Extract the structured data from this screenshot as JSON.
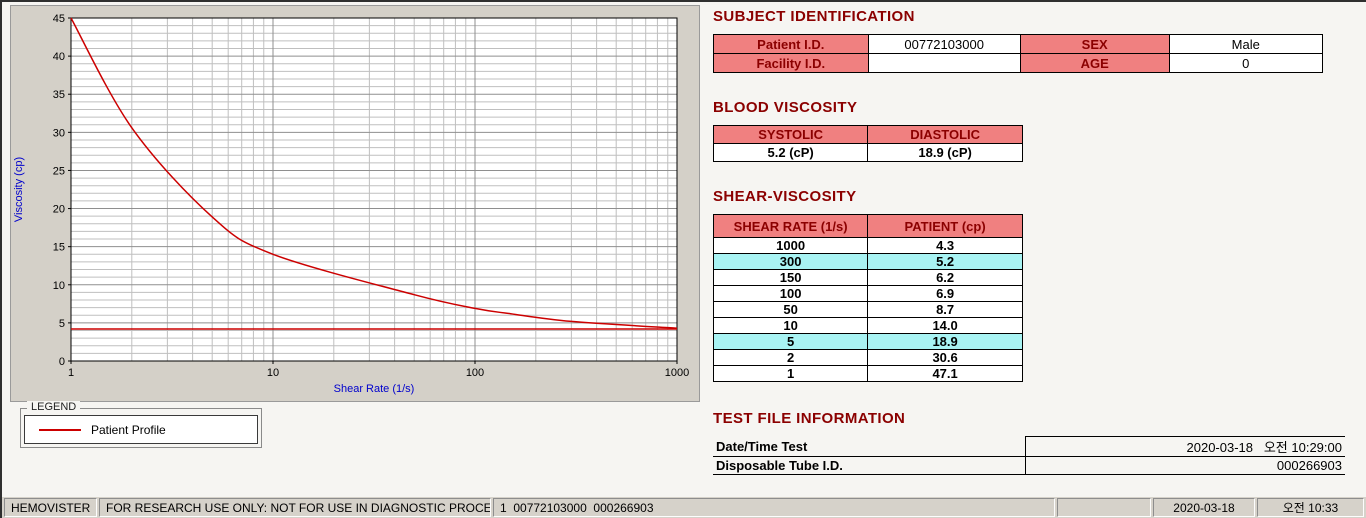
{
  "colors": {
    "accent_red": "#8b0000",
    "header_pink": "#f08080",
    "highlight_cyan": "#a8f3f3",
    "curve_red": "#cc0000",
    "axis_blue": "#0000cd",
    "panel_gray": "#d4d0c8"
  },
  "chart_data": {
    "type": "line",
    "x_scale": "log",
    "title": "",
    "xlabel": "Shear Rate (1/s)",
    "ylabel": "Viscosity (cp)",
    "xlim": [
      1,
      1000
    ],
    "ylim": [
      0,
      45
    ],
    "x_major_ticks": [
      1,
      10,
      100,
      1000
    ],
    "y_major_ticks": [
      0,
      5,
      10,
      15,
      20,
      25,
      30,
      35,
      40,
      45
    ],
    "grid": "on",
    "series": [
      {
        "name": "Patient Profile",
        "color": "#cc0000",
        "x": [
          1,
          2,
          5,
          10,
          50,
          100,
          150,
          300,
          1000
        ],
        "y": [
          47.1,
          30.6,
          18.9,
          14.0,
          8.7,
          6.9,
          6.2,
          5.2,
          4.3
        ]
      },
      {
        "name": "reference-line",
        "color": "#cc0000",
        "x": [
          1,
          1000
        ],
        "y": [
          4.2,
          4.2
        ]
      }
    ]
  },
  "legend": {
    "title": "LEGEND",
    "series": [
      {
        "label": "Patient Profile",
        "color": "#cc0000"
      }
    ]
  },
  "subject": {
    "title": "SUBJECT IDENTIFICATION",
    "rows": [
      {
        "label1": "Patient I.D.",
        "value1": "00772103000",
        "label2": "SEX",
        "value2": "Male"
      },
      {
        "label1": "Facility I.D.",
        "value1": "",
        "label2": "AGE",
        "value2": "0"
      }
    ]
  },
  "blood_viscosity": {
    "title": "BLOOD VISCOSITY",
    "headers": [
      "SYSTOLIC",
      "DIASTOLIC"
    ],
    "values": [
      "5.2 (cP)",
      "18.9 (cP)"
    ]
  },
  "shear_viscosity": {
    "title": "SHEAR-VISCOSITY",
    "headers": [
      "SHEAR RATE (1/s)",
      "PATIENT (cp)"
    ],
    "rows": [
      {
        "rate": "1000",
        "value": "4.3",
        "highlight": false
      },
      {
        "rate": "300",
        "value": "5.2",
        "highlight": true
      },
      {
        "rate": "150",
        "value": "6.2",
        "highlight": false
      },
      {
        "rate": "100",
        "value": "6.9",
        "highlight": false
      },
      {
        "rate": "50",
        "value": "8.7",
        "highlight": false
      },
      {
        "rate": "10",
        "value": "14.0",
        "highlight": false
      },
      {
        "rate": "5",
        "value": "18.9",
        "highlight": true
      },
      {
        "rate": "2",
        "value": "30.6",
        "highlight": false
      },
      {
        "rate": "1",
        "value": "47.1",
        "highlight": false
      }
    ]
  },
  "test_file": {
    "title": "TEST FILE INFORMATION",
    "rows": [
      {
        "label": "Date/Time Test",
        "value": "2020-03-18   오전 10:29:00"
      },
      {
        "label": "Disposable Tube I.D.",
        "value": "000266903"
      }
    ]
  },
  "status_bar": {
    "app": "HEMOVISTER",
    "notice": "FOR RESEARCH USE ONLY: NOT FOR USE IN DIAGNOSTIC PROCEDURES",
    "record": "1  00772103000  000266903",
    "date": "2020-03-18",
    "time": "오전 10:33"
  }
}
